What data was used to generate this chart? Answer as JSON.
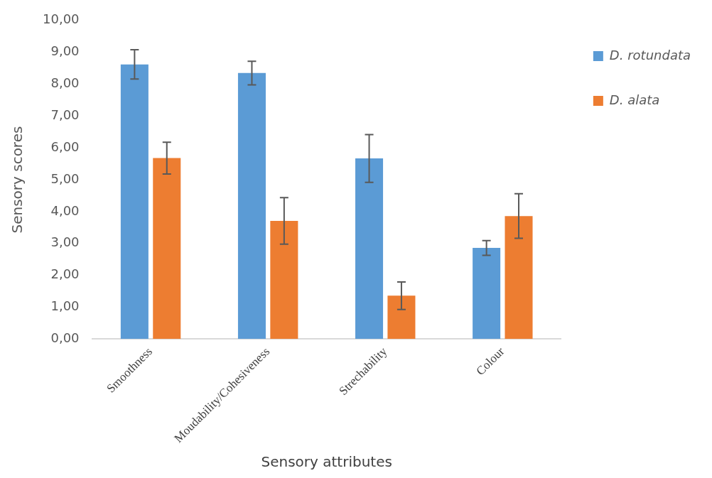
{
  "chart_data": {
    "type": "bar",
    "xlabel": "Sensory attributes",
    "ylabel": "Sensory scores",
    "categories": [
      "Smoothness",
      "Moudability/Cohesiveness",
      "Strechability",
      "Colour"
    ],
    "series": [
      {
        "name": "D. rotundata",
        "color": "#5b9bd5",
        "values": [
          8.62,
          8.35,
          5.67,
          2.86
        ],
        "errors": [
          0.46,
          0.37,
          0.75,
          0.23
        ]
      },
      {
        "name": "D. alata",
        "color": "#ed7d31",
        "values": [
          5.68,
          3.71,
          1.36,
          3.86
        ],
        "errors": [
          0.5,
          0.73,
          0.43,
          0.7
        ]
      }
    ],
    "ylim": [
      0,
      10
    ],
    "yticks": [
      {
        "value": 0,
        "label": "0,00"
      },
      {
        "value": 1,
        "label": "1,00"
      },
      {
        "value": 2,
        "label": "2,00"
      },
      {
        "value": 3,
        "label": "3,00"
      },
      {
        "value": 4,
        "label": "4,00"
      },
      {
        "value": 5,
        "label": "5,00"
      },
      {
        "value": 6,
        "label": "6,00"
      },
      {
        "value": 7,
        "label": "7,00"
      },
      {
        "value": 8,
        "label": "8,00"
      },
      {
        "value": 9,
        "label": "9,00"
      },
      {
        "value": 10,
        "label": "10,00"
      }
    ],
    "grid": false,
    "legend": "right"
  }
}
